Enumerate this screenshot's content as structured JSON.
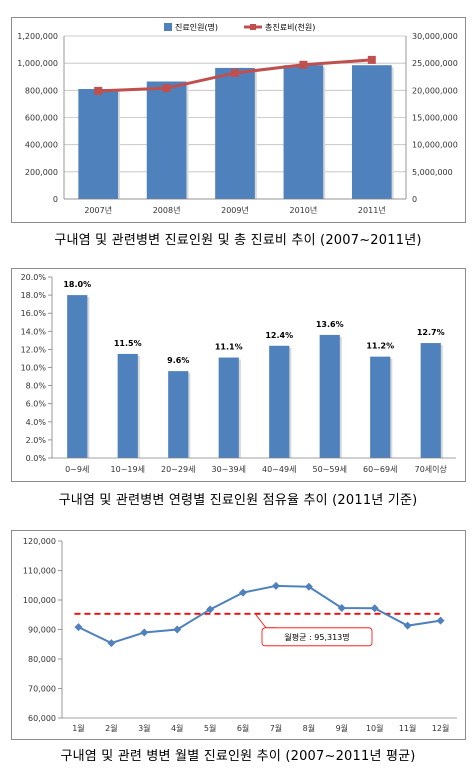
{
  "colors": {
    "bar": "#4f81bd",
    "line_red": "#c0504d",
    "line_blue": "#4f81bd",
    "avg_dash": "#ff0000",
    "grid": "#bfbfbf",
    "axis_text": "#333333"
  },
  "captions": [
    "구내염 및 관련병변 진료인원 및 총 진료비 추이 (2007~2011년)",
    "구내염 및 관련병변 연령별 진료인원 점유율 추이 (2011년 기준)",
    "구내염 및 관련 병변 월별 진료인원 추이 (2007~2011년 평균)"
  ],
  "chart_data": [
    {
      "type": "bar",
      "categories": [
        "2007년",
        "2008년",
        "2009년",
        "2010년",
        "2011년"
      ],
      "series": [
        {
          "name": "진료인원(명)",
          "type": "bar",
          "axis": "left",
          "values": [
            810000,
            865000,
            965000,
            985000,
            985000
          ]
        },
        {
          "name": "총진료비(천원)",
          "type": "line",
          "axis": "right",
          "values": [
            19900000,
            20400000,
            23200000,
            24700000,
            25600000
          ]
        }
      ],
      "y_ticks": [
        "0",
        "200,000",
        "400,000",
        "600,000",
        "800,000",
        "1,000,000",
        "1,200,000"
      ],
      "y2_ticks": [
        "0",
        "5,000,000",
        "10,000,000",
        "15,000,000",
        "20,000,000",
        "25,000,000",
        "30,000,000"
      ],
      "ylim": [
        0,
        1200000
      ],
      "y2lim": [
        0,
        30000000
      ],
      "legend_position": "top-center",
      "grid": true
    },
    {
      "type": "bar",
      "categories": [
        "0~9세",
        "10~19세",
        "20~29세",
        "30~39세",
        "40~49세",
        "50~59세",
        "60~69세",
        "70세이상"
      ],
      "values": [
        18.0,
        11.5,
        9.6,
        11.1,
        12.4,
        13.6,
        11.2,
        12.7
      ],
      "data_labels": [
        "18.0%",
        "11.5%",
        "9.6%",
        "11.1%",
        "12.4%",
        "13.6%",
        "11.2%",
        "12.7%"
      ],
      "y_ticks": [
        "0.0%",
        "2.0%",
        "4.0%",
        "6.0%",
        "8.0%",
        "10.0%",
        "12.0%",
        "14.0%",
        "16.0%",
        "18.0%",
        "20.0%"
      ],
      "ylim": [
        0,
        20
      ],
      "grid": false
    },
    {
      "type": "line",
      "categories": [
        "1월",
        "2월",
        "3월",
        "4월",
        "5월",
        "6월",
        "7월",
        "8월",
        "9월",
        "10월",
        "11월",
        "12월"
      ],
      "values": [
        90800,
        85400,
        89000,
        90000,
        96800,
        102500,
        104800,
        104500,
        97300,
        97200,
        91300,
        93000
      ],
      "average": 95313,
      "annotation": "월평균 : 95,313명",
      "y_ticks": [
        "60,000",
        "70,000",
        "80,000",
        "90,000",
        "100,000",
        "110,000",
        "120,000"
      ],
      "ylim": [
        60000,
        120000
      ],
      "grid": false
    }
  ]
}
